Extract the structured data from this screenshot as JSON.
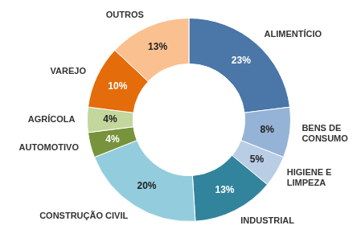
{
  "chart_data": {
    "type": "doughnut",
    "categories": [
      "ALIMENTÍCIO",
      "BENS DE CONSUMO",
      "HIGIENE E LIMPEZA",
      "INDUSTRIAL",
      "CONSTRUÇÃO CIVIL",
      "AUTOMOTIVO",
      "AGRÍCOLA",
      "VAREJO",
      "OUTROS"
    ],
    "values": [
      23,
      8,
      5,
      13,
      20,
      4,
      4,
      10,
      13
    ],
    "value_labels": [
      "23%",
      "8%",
      "5%",
      "13%",
      "20%",
      "4%",
      "4%",
      "10%",
      "13%"
    ],
    "colors": [
      "#4a76a8",
      "#95b3d7",
      "#b9cde5",
      "#31849b",
      "#93cddd",
      "#77933c",
      "#c3d69b",
      "#e46c0a",
      "#fac090"
    ],
    "data_labels": true
  }
}
